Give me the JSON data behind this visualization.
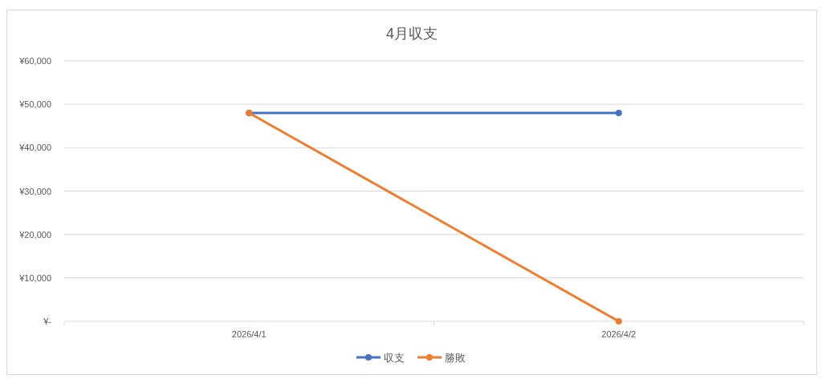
{
  "chart_data": {
    "type": "line",
    "title": "4月収支",
    "categories": [
      "2026/4/1",
      "2026/4/2"
    ],
    "series": [
      {
        "name": "収支",
        "color": "#4472c4",
        "values": [
          48000,
          48000
        ]
      },
      {
        "name": "勝敗",
        "color": "#ed7d31",
        "values": [
          48000,
          0
        ]
      }
    ],
    "ylim": [
      0,
      60000
    ],
    "yticks": [
      {
        "value": 0,
        "label": "¥-"
      },
      {
        "value": 10000,
        "label": "¥10,000"
      },
      {
        "value": 20000,
        "label": "¥20,000"
      },
      {
        "value": 30000,
        "label": "¥30,000"
      },
      {
        "value": 40000,
        "label": "¥40,000"
      },
      {
        "value": 50000,
        "label": "¥50,000"
      },
      {
        "value": 60000,
        "label": "¥60,000"
      }
    ],
    "grid": "y",
    "legend": "bottom",
    "marker": "circle"
  }
}
